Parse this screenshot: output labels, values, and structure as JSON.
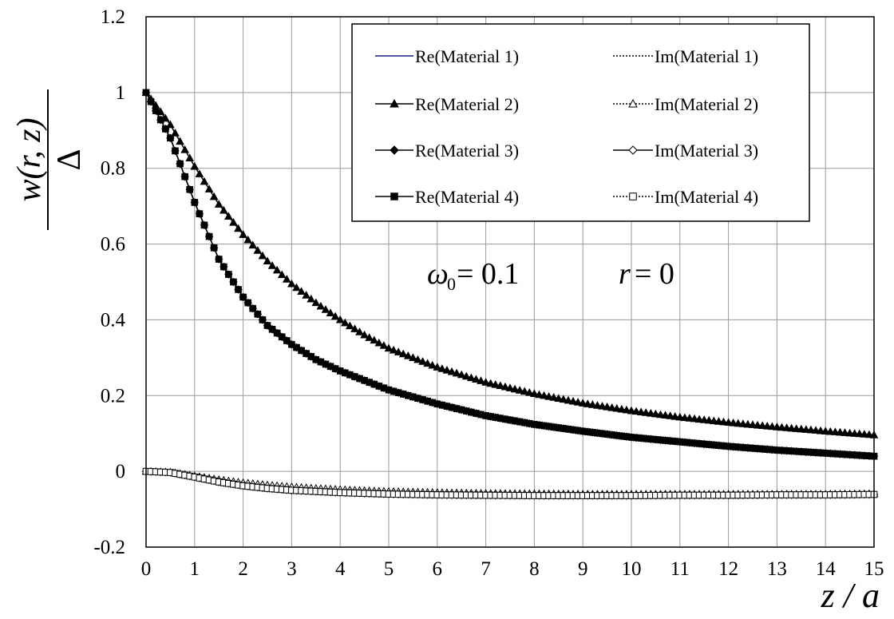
{
  "chart_data": {
    "type": "line",
    "xlabel": "z / a",
    "ylabel_numerator": "w(r, z)",
    "ylabel_denominator": "Δ",
    "xlim": [
      0,
      15
    ],
    "ylim": [
      -0.2,
      1.2
    ],
    "x_ticks": [
      "0",
      "1",
      "2",
      "3",
      "4",
      "5",
      "6",
      "7",
      "8",
      "9",
      "10",
      "11",
      "12",
      "13",
      "14",
      "15"
    ],
    "y_ticks": [
      "-0.2",
      "0",
      "0.2",
      "0.4",
      "0.6",
      "0.8",
      "1",
      "1.2"
    ],
    "grid": true,
    "legend_position": "top-right",
    "annotation": {
      "omega_symbol": "ω",
      "omega_subscript": "0",
      "omega_text": " = 0.1",
      "r_symbol": "r",
      "r_text": " = 0"
    },
    "x": [
      0,
      0.5,
      1,
      1.5,
      2,
      2.5,
      3,
      3.5,
      4,
      4.5,
      5,
      6,
      7,
      8,
      9,
      10,
      11,
      12,
      13,
      14,
      15
    ],
    "series": [
      {
        "name": "Re(Material 1)",
        "marker": "none",
        "line": "solid",
        "color": "#1a1a8c",
        "values": [
          1.0,
          0.88,
          0.71,
          0.56,
          0.46,
          0.385,
          0.335,
          0.295,
          0.265,
          0.24,
          0.215,
          0.178,
          0.147,
          0.124,
          0.106,
          0.09,
          0.078,
          0.066,
          0.056,
          0.048,
          0.04
        ]
      },
      {
        "name": "Im(Material 1)",
        "marker": "none",
        "line": "dotted",
        "color": "#000000",
        "values": [
          0.0,
          -0.003,
          -0.015,
          -0.028,
          -0.038,
          -0.045,
          -0.05,
          -0.053,
          -0.056,
          -0.058,
          -0.06,
          -0.062,
          -0.063,
          -0.064,
          -0.064,
          -0.064,
          -0.063,
          -0.063,
          -0.062,
          -0.062,
          -0.061
        ]
      },
      {
        "name": "Re(Material 2)",
        "marker": "triangle-filled",
        "line": "solid",
        "color": "#000000",
        "values": [
          1.0,
          0.915,
          0.805,
          0.705,
          0.625,
          0.555,
          0.495,
          0.445,
          0.4,
          0.36,
          0.325,
          0.275,
          0.235,
          0.205,
          0.18,
          0.16,
          0.143,
          0.129,
          0.117,
          0.106,
          0.096
        ]
      },
      {
        "name": "Im(Material 2)",
        "marker": "triangle-open",
        "line": "dotted",
        "color": "#000000",
        "values": [
          0.0,
          -0.002,
          -0.012,
          -0.022,
          -0.03,
          -0.036,
          -0.041,
          -0.045,
          -0.048,
          -0.051,
          -0.053,
          -0.056,
          -0.058,
          -0.059,
          -0.06,
          -0.06,
          -0.06,
          -0.06,
          -0.06,
          -0.06,
          -0.059
        ]
      },
      {
        "name": "Re(Material 3)",
        "marker": "diamond-filled",
        "line": "solid",
        "color": "#000000",
        "values": [
          1.0,
          0.88,
          0.71,
          0.56,
          0.46,
          0.385,
          0.335,
          0.295,
          0.265,
          0.24,
          0.215,
          0.178,
          0.147,
          0.124,
          0.106,
          0.09,
          0.078,
          0.066,
          0.056,
          0.048,
          0.04
        ]
      },
      {
        "name": "Im(Material 3)",
        "marker": "diamond-open",
        "line": "solid",
        "color": "#000000",
        "values": [
          0.0,
          -0.003,
          -0.015,
          -0.028,
          -0.038,
          -0.045,
          -0.05,
          -0.053,
          -0.056,
          -0.058,
          -0.06,
          -0.062,
          -0.063,
          -0.064,
          -0.064,
          -0.064,
          -0.063,
          -0.063,
          -0.062,
          -0.062,
          -0.061
        ]
      },
      {
        "name": "Re(Material 4)",
        "marker": "square-filled",
        "line": "solid",
        "color": "#000000",
        "values": [
          1.0,
          0.88,
          0.71,
          0.56,
          0.46,
          0.385,
          0.335,
          0.295,
          0.265,
          0.24,
          0.215,
          0.178,
          0.147,
          0.124,
          0.106,
          0.09,
          0.078,
          0.066,
          0.056,
          0.048,
          0.04
        ]
      },
      {
        "name": "Im(Material 4)",
        "marker": "square-open",
        "line": "dotted",
        "color": "#000000",
        "values": [
          0.0,
          -0.003,
          -0.015,
          -0.028,
          -0.038,
          -0.045,
          -0.05,
          -0.053,
          -0.056,
          -0.058,
          -0.06,
          -0.062,
          -0.063,
          -0.064,
          -0.064,
          -0.064,
          -0.063,
          -0.063,
          -0.062,
          -0.062,
          -0.061
        ]
      }
    ]
  }
}
